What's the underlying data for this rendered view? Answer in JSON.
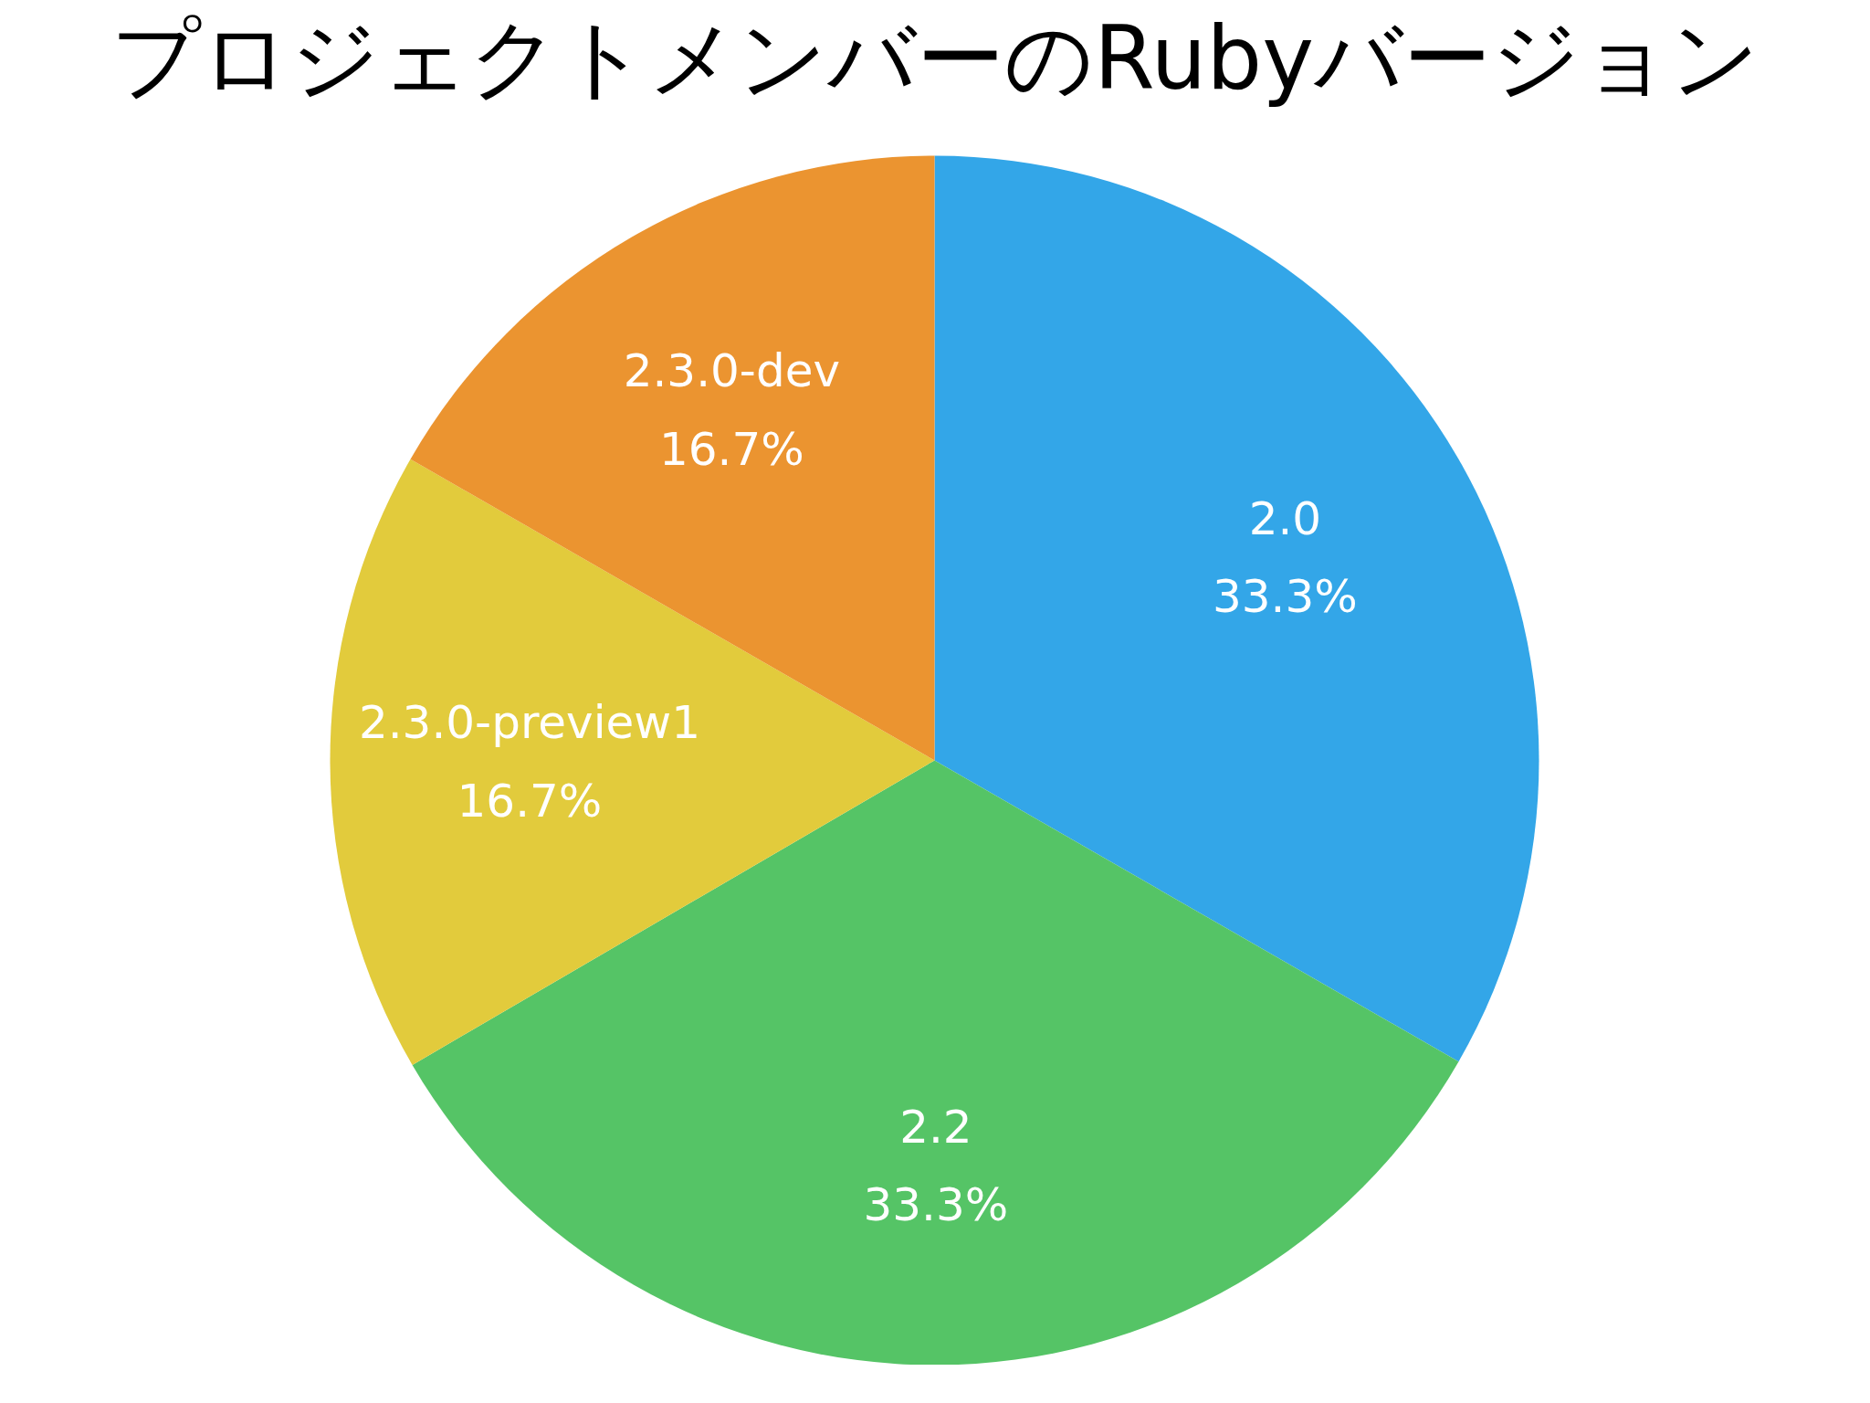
{
  "chart_data": {
    "type": "pie",
    "title": "プロジェクトメンバーのRubyバージョン",
    "categories": [
      "2.0",
      "2.2",
      "2.3.0-preview1",
      "2.3.0-dev"
    ],
    "values": [
      33.3,
      33.3,
      16.7,
      16.7
    ],
    "value_labels": [
      "33.3%",
      "33.3%",
      "16.7%",
      "16.7%"
    ],
    "colors": [
      "#33a6e8",
      "#55c466",
      "#e2cb3c",
      "#eb9430"
    ]
  }
}
